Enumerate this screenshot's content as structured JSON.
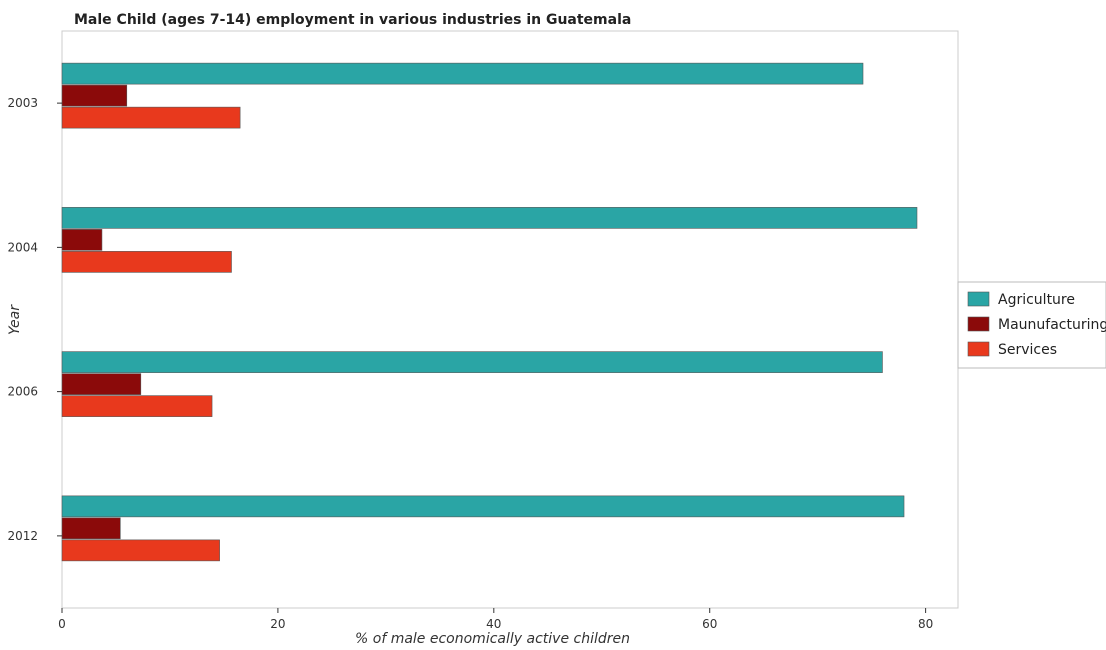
{
  "chart_data": {
    "type": "bar",
    "orientation": "horizontal",
    "title": "Male Child (ages 7-14) employment in various industries in Guatemala",
    "xlabel": "% of male economically active children",
    "ylabel": "Year",
    "categories": [
      "2003",
      "2004",
      "2006",
      "2012"
    ],
    "series": [
      {
        "name": "Agriculture",
        "color": "#2aa5a5",
        "values": [
          74.2,
          79.2,
          76.0,
          78.0
        ]
      },
      {
        "name": "Maunufacturing",
        "color": "#8b0a0a",
        "values": [
          6.0,
          3.7,
          7.3,
          5.4
        ]
      },
      {
        "name": "Services",
        "color": "#e8391d",
        "values": [
          16.5,
          15.7,
          13.9,
          14.6
        ]
      }
    ],
    "xlim": [
      0,
      83
    ],
    "xticks": [
      0,
      20,
      40,
      60,
      80
    ],
    "legend_position": "right",
    "grid": false
  }
}
